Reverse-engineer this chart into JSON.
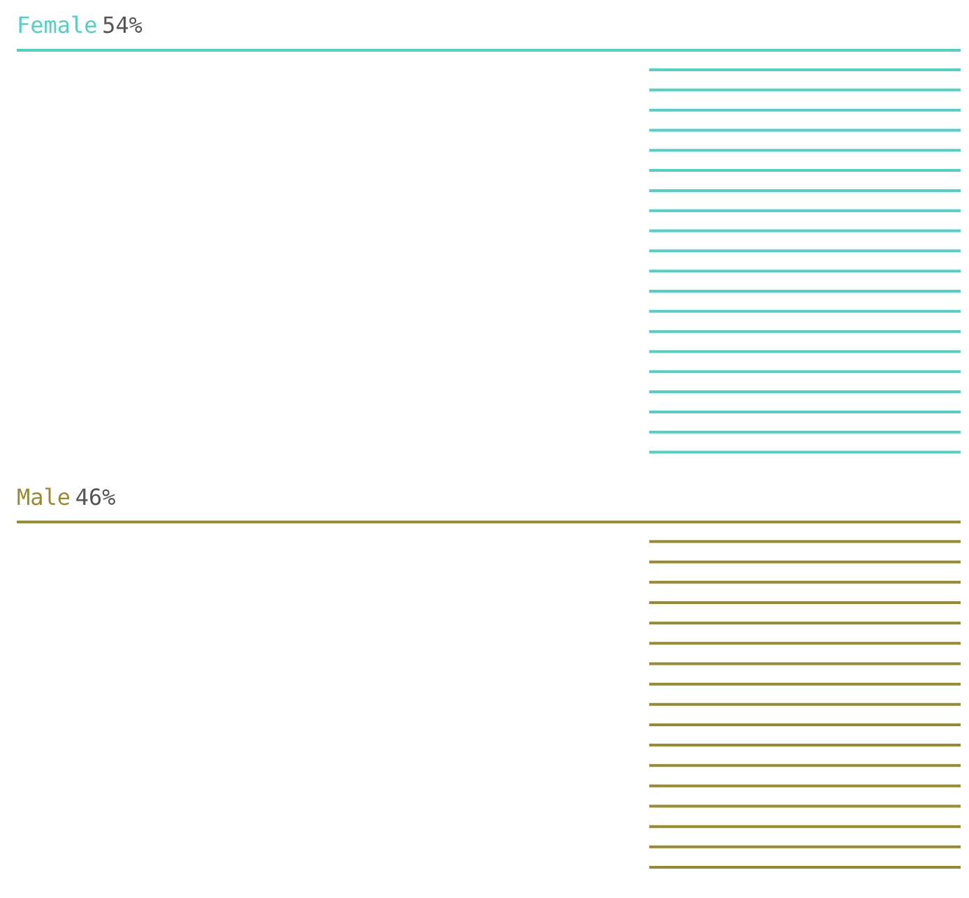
{
  "chart_data": {
    "type": "other",
    "categories": [
      "Female",
      "Male"
    ],
    "values": [
      54,
      46
    ],
    "colors": [
      "#4fd1c5",
      "#9a8a2e"
    ],
    "value_labels": [
      "54%",
      "46%"
    ]
  }
}
